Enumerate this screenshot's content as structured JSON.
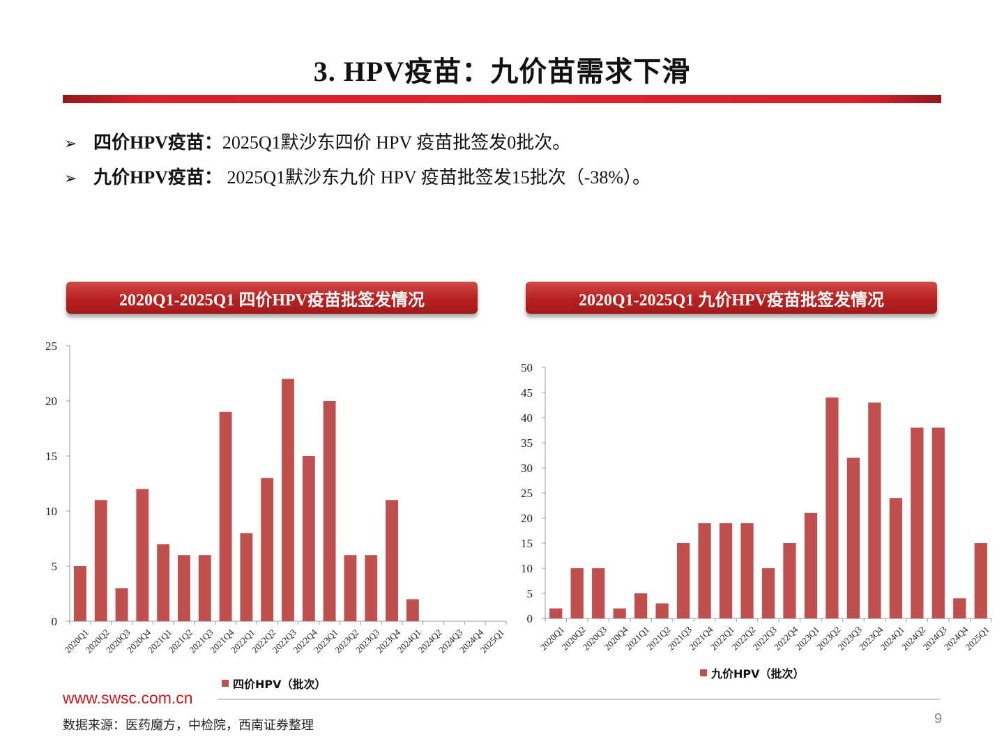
{
  "header": {
    "title": "3. HPV疫苗：九价苗需求下滑"
  },
  "bullets": [
    {
      "marker": "➢",
      "label": "四价HPV疫苗",
      "sep": "：",
      "text": "2025Q1默沙东四价 HPV 疫苗批签发0批次。"
    },
    {
      "marker": "➢",
      "label": "九价HPV疫苗",
      "sep": "： ",
      "text": "2025Q1默沙东九价 HPV 疫苗批签发15批次（-38%）。"
    }
  ],
  "colors": {
    "bar": "#c0504d",
    "accent": "#e4242e",
    "site": "#c8171e"
  },
  "chart_data": [
    {
      "type": "bar",
      "title": "2020Q1-2025Q1 四价HPV疫苗批签发情况",
      "categories": [
        "2020Q1",
        "2020Q2",
        "2020Q3",
        "2020Q4",
        "2021Q1",
        "2021Q2",
        "2021Q3",
        "2021Q4",
        "2022Q1",
        "2022Q2",
        "2022Q3",
        "2022Q4",
        "2023Q1",
        "2023Q2",
        "2023Q3",
        "2023Q4",
        "2024Q1",
        "2024Q2",
        "2024Q3",
        "2024Q4",
        "2025Q1"
      ],
      "series": [
        {
          "name": "四价HPV（批次）",
          "values": [
            5,
            11,
            3,
            12,
            7,
            6,
            6,
            19,
            8,
            13,
            22,
            15,
            20,
            6,
            6,
            11,
            2,
            0,
            0,
            0,
            0
          ]
        }
      ],
      "ylim": [
        0,
        25
      ],
      "yticks": [
        "0",
        "5",
        "10",
        "15",
        "20",
        "25"
      ],
      "legend": "bottom",
      "grid": false
    },
    {
      "type": "bar",
      "title": "2020Q1-2025Q1 九价HPV疫苗批签发情况",
      "categories": [
        "2020Q1",
        "2020Q2",
        "2020Q3",
        "2020Q4",
        "2021Q1",
        "2021Q2",
        "2021Q3",
        "2021Q4",
        "2022Q1",
        "2022Q2",
        "2022Q3",
        "2022Q4",
        "2023Q1",
        "2023Q2",
        "2023Q3",
        "2023Q4",
        "2024Q1",
        "2024Q2",
        "2024Q3",
        "2024Q4",
        "2025Q1"
      ],
      "series": [
        {
          "name": "九价HPV（批次）",
          "values": [
            2,
            10,
            10,
            2,
            5,
            3,
            15,
            19,
            19,
            19,
            10,
            15,
            21,
            44,
            32,
            43,
            24,
            38,
            38,
            4,
            15
          ]
        }
      ],
      "ylim": [
        0,
        50
      ],
      "yticks": [
        "0",
        "5",
        "10",
        "15",
        "20",
        "25",
        "30",
        "35",
        "40",
        "45",
        "50"
      ],
      "legend": "bottom",
      "grid": false
    }
  ],
  "footer": {
    "site": "www.swsc.com.cn",
    "source": "数据来源：医药魔方，中检院，西南证券整理",
    "page": "9"
  }
}
